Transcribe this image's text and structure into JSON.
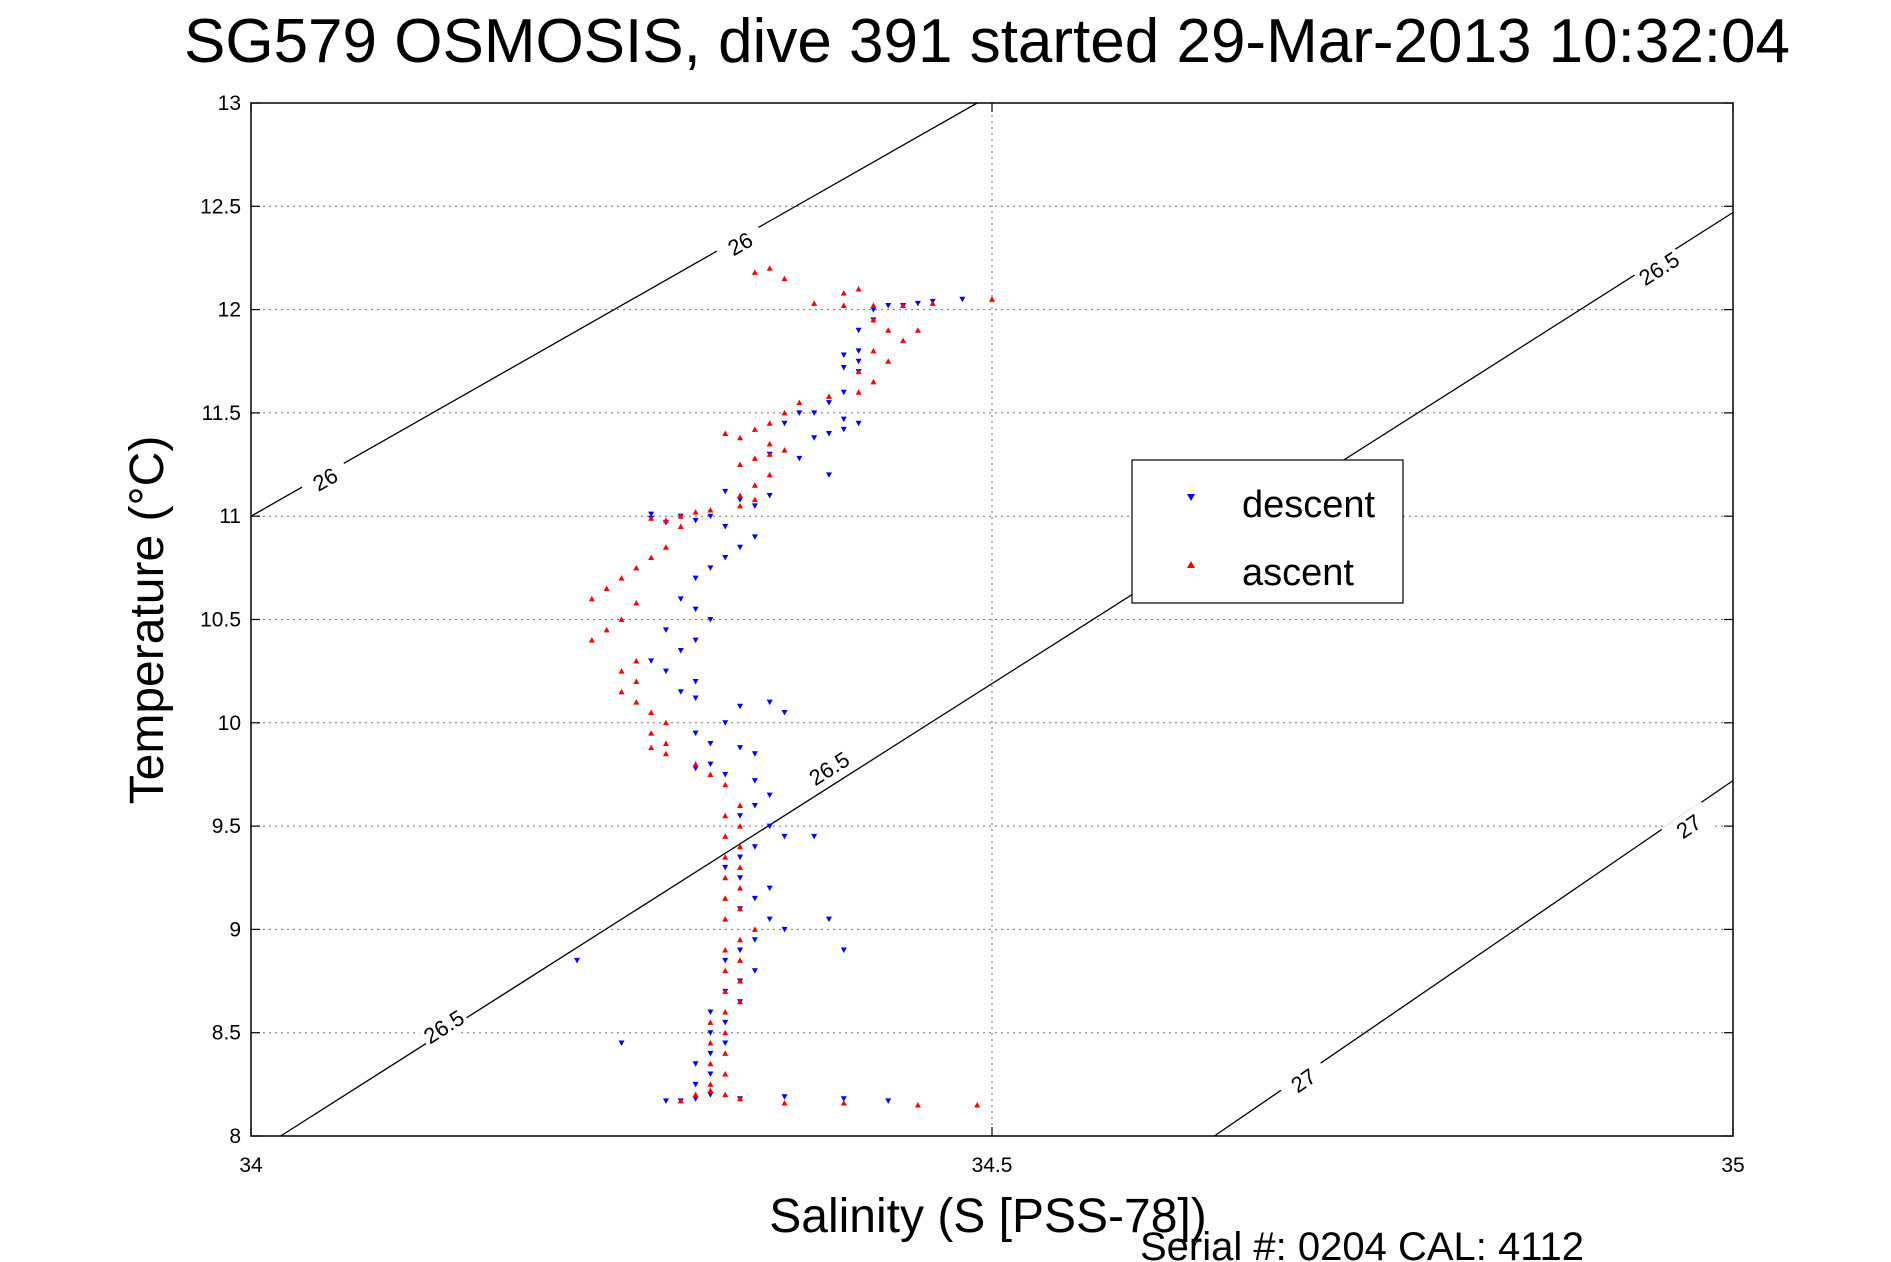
{
  "chart_data": {
    "type": "scatter",
    "title": "SG579 OSMOSIS, dive 391 started 29-Mar-2013 10:32:04",
    "xlabel": "Salinity (S [PSS-78])",
    "ylabel": "Temperature (°C)",
    "xlim": [
      34,
      35
    ],
    "ylim": [
      8,
      13
    ],
    "xticks": [
      34,
      34.5,
      35
    ],
    "xtick_labels": [
      "34",
      "34.5",
      "35"
    ],
    "yticks": [
      8,
      8.5,
      9,
      9.5,
      10,
      10.5,
      11,
      11.5,
      12,
      12.5,
      13
    ],
    "ytick_labels": [
      "8",
      "8.5",
      "9",
      "9.5",
      "10",
      "10.5",
      "11",
      "11.5",
      "12",
      "12.5",
      "13"
    ],
    "grid": true,
    "legend_position": "center-right",
    "footer": "Serial #: 0204  CAL: 4112",
    "density_contours": [
      {
        "level": "26",
        "line": [
          [
            34.0,
            11.0
          ],
          [
            34.49,
            13.0
          ]
        ],
        "labels": [
          {
            "text": "26",
            "at": [
              34.05,
              11.18
            ]
          },
          {
            "text": "26",
            "at": [
              34.33,
              12.32
            ]
          }
        ]
      },
      {
        "level": "26.5",
        "line": [
          [
            34.02,
            8.0
          ],
          [
            35.0,
            12.47
          ]
        ],
        "labels": [
          {
            "text": "26.5",
            "at": [
              34.13,
              8.53
            ]
          },
          {
            "text": "26.5",
            "at": [
              34.39,
              9.78
            ]
          },
          {
            "text": "26.5",
            "at": [
              34.95,
              12.2
            ]
          }
        ]
      },
      {
        "level": "27",
        "line": [
          [
            34.65,
            8.0
          ],
          [
            35.0,
            9.72
          ]
        ],
        "labels": [
          {
            "text": "27",
            "at": [
              34.71,
              8.27
            ]
          },
          {
            "text": "27",
            "at": [
              34.97,
              9.5
            ]
          }
        ]
      }
    ],
    "series": [
      {
        "name": "descent",
        "color": "#0000ff",
        "marker": "triangle-down",
        "points": [
          [
            34.48,
            12.05
          ],
          [
            34.46,
            12.04
          ],
          [
            34.45,
            12.03
          ],
          [
            34.44,
            12.02
          ],
          [
            34.43,
            12.02
          ],
          [
            34.42,
            12.0
          ],
          [
            34.42,
            11.95
          ],
          [
            34.41,
            11.9
          ],
          [
            34.41,
            11.8
          ],
          [
            34.4,
            11.78
          ],
          [
            34.41,
            11.75
          ],
          [
            34.4,
            11.72
          ],
          [
            34.41,
            11.7
          ],
          [
            34.4,
            11.6
          ],
          [
            34.39,
            11.55
          ],
          [
            34.38,
            11.5
          ],
          [
            34.4,
            11.47
          ],
          [
            34.41,
            11.45
          ],
          [
            34.4,
            11.42
          ],
          [
            34.39,
            11.4
          ],
          [
            34.38,
            11.38
          ],
          [
            34.37,
            11.5
          ],
          [
            34.36,
            11.45
          ],
          [
            34.35,
            11.3
          ],
          [
            34.37,
            11.28
          ],
          [
            34.39,
            11.2
          ],
          [
            34.35,
            11.1
          ],
          [
            34.34,
            11.05
          ],
          [
            34.33,
            11.08
          ],
          [
            34.32,
            11.12
          ],
          [
            34.31,
            11.0
          ],
          [
            34.3,
            10.98
          ],
          [
            34.29,
            11.0
          ],
          [
            34.28,
            10.97
          ],
          [
            34.27,
            10.99
          ],
          [
            34.32,
            10.95
          ],
          [
            34.34,
            10.9
          ],
          [
            34.33,
            10.85
          ],
          [
            34.32,
            10.8
          ],
          [
            34.31,
            10.75
          ],
          [
            34.3,
            10.7
          ],
          [
            34.29,
            10.6
          ],
          [
            34.3,
            10.55
          ],
          [
            34.31,
            10.5
          ],
          [
            34.28,
            10.45
          ],
          [
            34.3,
            10.4
          ],
          [
            34.29,
            10.35
          ],
          [
            34.27,
            10.3
          ],
          [
            34.28,
            10.25
          ],
          [
            34.3,
            10.2
          ],
          [
            34.29,
            10.15
          ],
          [
            34.3,
            10.12
          ],
          [
            34.33,
            10.08
          ],
          [
            34.35,
            10.1
          ],
          [
            34.36,
            10.05
          ],
          [
            34.32,
            10.0
          ],
          [
            34.3,
            9.95
          ],
          [
            34.31,
            9.9
          ],
          [
            34.33,
            9.88
          ],
          [
            34.34,
            9.85
          ],
          [
            34.31,
            9.8
          ],
          [
            34.3,
            9.78
          ],
          [
            34.32,
            9.75
          ],
          [
            34.34,
            9.72
          ],
          [
            34.35,
            9.65
          ],
          [
            34.34,
            9.6
          ],
          [
            34.33,
            9.55
          ],
          [
            34.35,
            9.5
          ],
          [
            34.36,
            9.45
          ],
          [
            34.34,
            9.4
          ],
          [
            34.33,
            9.35
          ],
          [
            34.32,
            9.3
          ],
          [
            34.33,
            9.25
          ],
          [
            34.35,
            9.2
          ],
          [
            34.34,
            9.15
          ],
          [
            34.33,
            9.1
          ],
          [
            34.35,
            9.05
          ],
          [
            34.36,
            9.0
          ],
          [
            34.34,
            8.95
          ],
          [
            34.33,
            8.9
          ],
          [
            34.32,
            8.85
          ],
          [
            34.34,
            8.8
          ],
          [
            34.33,
            8.75
          ],
          [
            34.32,
            8.7
          ],
          [
            34.33,
            8.65
          ],
          [
            34.31,
            8.6
          ],
          [
            34.32,
            8.55
          ],
          [
            34.31,
            8.5
          ],
          [
            34.32,
            8.45
          ],
          [
            34.31,
            8.4
          ],
          [
            34.3,
            8.35
          ],
          [
            34.31,
            8.3
          ],
          [
            34.3,
            8.25
          ],
          [
            34.31,
            8.2
          ],
          [
            34.3,
            8.18
          ],
          [
            34.29,
            8.17
          ],
          [
            34.28,
            8.17
          ],
          [
            34.33,
            8.18
          ],
          [
            34.36,
            8.19
          ],
          [
            34.4,
            8.18
          ],
          [
            34.22,
            8.85
          ],
          [
            34.25,
            8.45
          ],
          [
            34.4,
            8.9
          ],
          [
            34.39,
            9.05
          ],
          [
            34.38,
            9.45
          ],
          [
            34.27,
            11.01
          ],
          [
            34.43,
            8.17
          ]
        ]
      },
      {
        "name": "ascent",
        "color": "#ff0000",
        "marker": "triangle-up",
        "points": [
          [
            34.5,
            12.05
          ],
          [
            34.46,
            12.03
          ],
          [
            34.44,
            12.02
          ],
          [
            34.42,
            12.02
          ],
          [
            34.4,
            12.02
          ],
          [
            34.38,
            12.03
          ],
          [
            34.41,
            12.1
          ],
          [
            34.36,
            12.15
          ],
          [
            34.35,
            12.2
          ],
          [
            34.42,
            11.95
          ],
          [
            34.43,
            11.9
          ],
          [
            34.45,
            11.9
          ],
          [
            34.44,
            11.85
          ],
          [
            34.42,
            11.8
          ],
          [
            34.43,
            11.75
          ],
          [
            34.41,
            11.7
          ],
          [
            34.42,
            11.65
          ],
          [
            34.41,
            11.6
          ],
          [
            34.39,
            11.58
          ],
          [
            34.37,
            11.55
          ],
          [
            34.36,
            11.5
          ],
          [
            34.35,
            11.45
          ],
          [
            34.34,
            11.42
          ],
          [
            34.33,
            11.38
          ],
          [
            34.32,
            11.4
          ],
          [
            34.35,
            11.35
          ],
          [
            34.36,
            11.32
          ],
          [
            34.35,
            11.3
          ],
          [
            34.34,
            11.28
          ],
          [
            34.33,
            11.25
          ],
          [
            34.35,
            11.2
          ],
          [
            34.34,
            11.15
          ],
          [
            34.33,
            11.1
          ],
          [
            34.34,
            11.08
          ],
          [
            34.33,
            11.05
          ],
          [
            34.31,
            11.03
          ],
          [
            34.3,
            11.02
          ],
          [
            34.29,
            11.0
          ],
          [
            34.28,
            10.98
          ],
          [
            34.27,
            10.99
          ],
          [
            34.29,
            10.95
          ],
          [
            34.28,
            10.85
          ],
          [
            34.27,
            10.8
          ],
          [
            34.26,
            10.75
          ],
          [
            34.25,
            10.7
          ],
          [
            34.24,
            10.65
          ],
          [
            34.23,
            10.6
          ],
          [
            34.26,
            10.58
          ],
          [
            34.25,
            10.5
          ],
          [
            34.24,
            10.45
          ],
          [
            34.23,
            10.4
          ],
          [
            34.26,
            10.3
          ],
          [
            34.25,
            10.25
          ],
          [
            34.26,
            10.2
          ],
          [
            34.25,
            10.15
          ],
          [
            34.26,
            10.1
          ],
          [
            34.27,
            10.05
          ],
          [
            34.28,
            10.0
          ],
          [
            34.27,
            9.95
          ],
          [
            34.28,
            9.9
          ],
          [
            34.27,
            9.88
          ],
          [
            34.28,
            9.85
          ],
          [
            34.3,
            9.8
          ],
          [
            34.31,
            9.75
          ],
          [
            34.32,
            9.7
          ],
          [
            34.33,
            9.6
          ],
          [
            34.32,
            9.55
          ],
          [
            34.33,
            9.5
          ],
          [
            34.32,
            9.45
          ],
          [
            34.33,
            9.4
          ],
          [
            34.32,
            9.35
          ],
          [
            34.33,
            9.3
          ],
          [
            34.32,
            9.25
          ],
          [
            34.33,
            9.2
          ],
          [
            34.32,
            9.15
          ],
          [
            34.33,
            9.1
          ],
          [
            34.32,
            9.05
          ],
          [
            34.34,
            9.0
          ],
          [
            34.33,
            8.95
          ],
          [
            34.32,
            8.9
          ],
          [
            34.33,
            8.85
          ],
          [
            34.32,
            8.8
          ],
          [
            34.33,
            8.75
          ],
          [
            34.32,
            8.7
          ],
          [
            34.33,
            8.65
          ],
          [
            34.32,
            8.6
          ],
          [
            34.31,
            8.55
          ],
          [
            34.32,
            8.5
          ],
          [
            34.31,
            8.45
          ],
          [
            34.32,
            8.4
          ],
          [
            34.31,
            8.35
          ],
          [
            34.32,
            8.3
          ],
          [
            34.31,
            8.25
          ],
          [
            34.32,
            8.2
          ],
          [
            34.33,
            8.18
          ],
          [
            34.36,
            8.16
          ],
          [
            34.4,
            8.16
          ],
          [
            34.45,
            8.15
          ],
          [
            34.49,
            8.15
          ],
          [
            34.29,
            8.17
          ],
          [
            34.3,
            8.2
          ],
          [
            34.31,
            8.22
          ],
          [
            34.34,
            12.18
          ],
          [
            34.4,
            12.08
          ]
        ]
      }
    ]
  }
}
